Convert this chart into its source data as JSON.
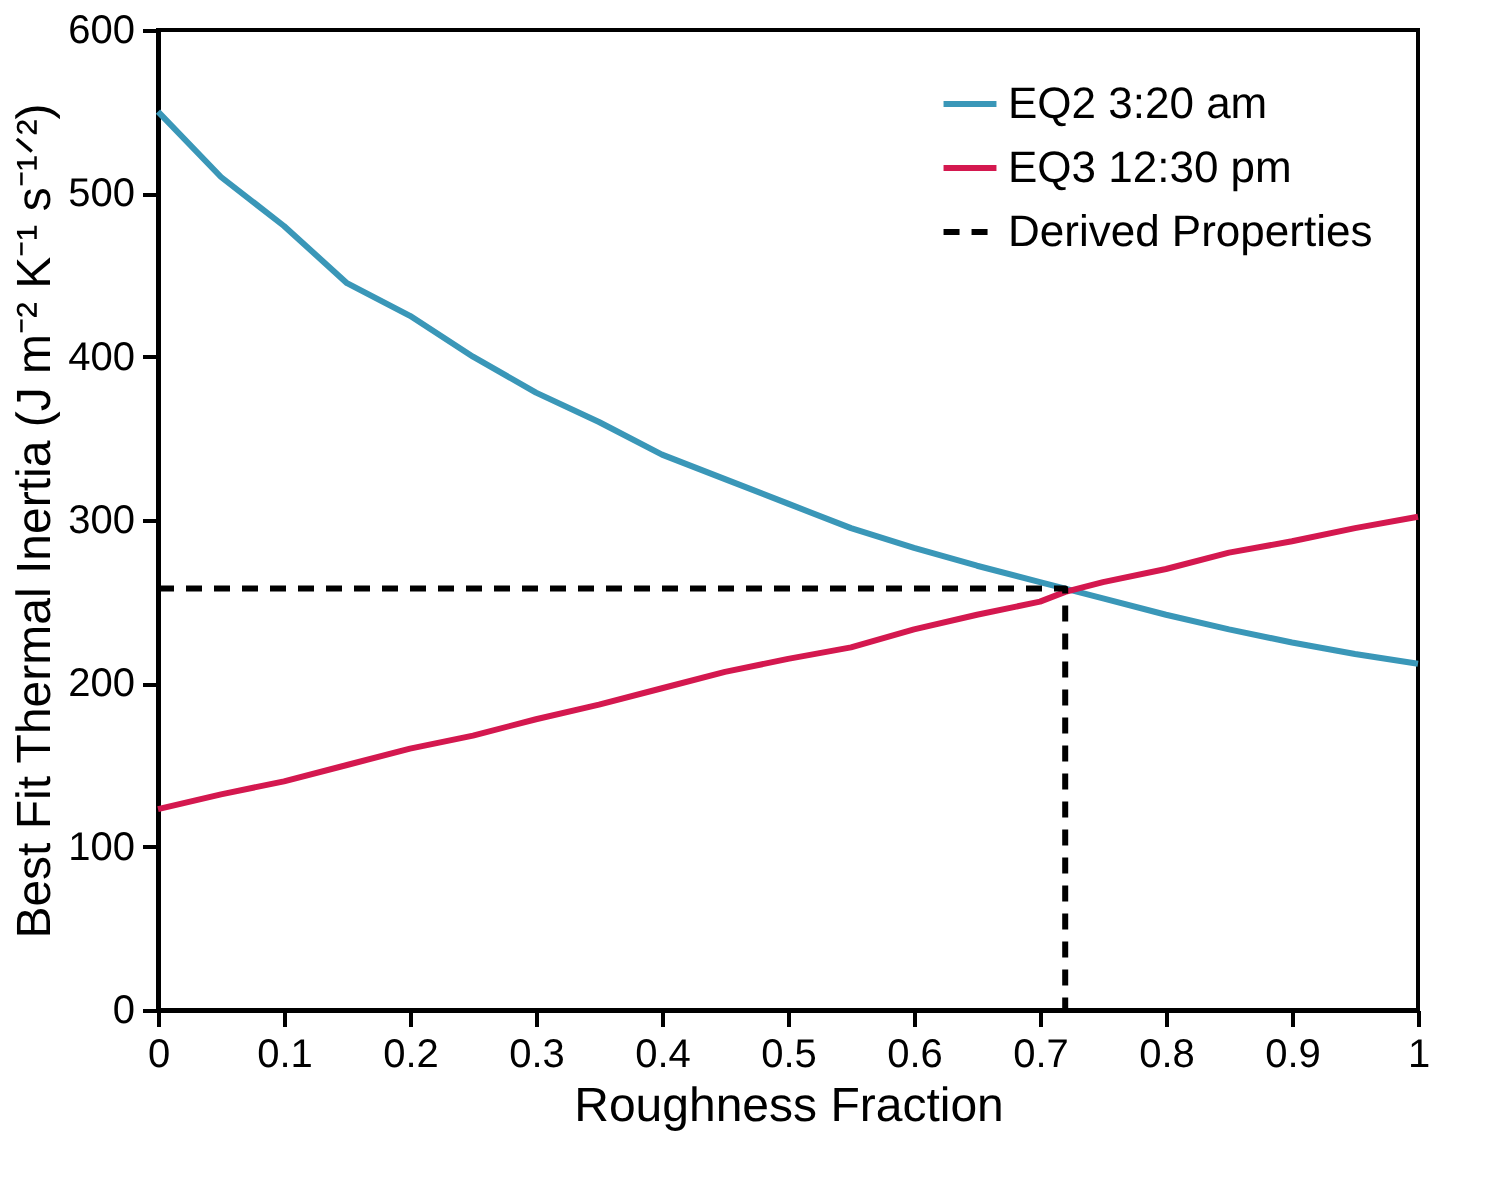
{
  "chart_data": {
    "type": "line",
    "xlabel": "Roughness Fraction",
    "ylabel": "Best Fit Thermal Inertia (J m⁻² K⁻¹ s⁻¹ᐟ²)",
    "xlim": [
      0,
      1
    ],
    "xticks": [
      0,
      0.1,
      0.2,
      0.3,
      0.4,
      0.5,
      0.6,
      0.7,
      0.8,
      0.9,
      1
    ],
    "ylim": [
      0,
      600
    ],
    "yticks": [
      0,
      100,
      200,
      300,
      400,
      500,
      600
    ],
    "grid": false,
    "legend": "top right",
    "line_style": "solid",
    "series": [
      {
        "name": "EQ2 3:20 am",
        "color": "#3a97b8",
        "x": [
          0,
          0.05,
          0.1,
          0.15,
          0.2,
          0.25,
          0.3,
          0.35,
          0.4,
          0.45,
          0.5,
          0.55,
          0.6,
          0.65,
          0.7,
          0.72,
          0.75,
          0.8,
          0.85,
          0.9,
          0.95,
          1
        ],
        "values": [
          550,
          510,
          480,
          445,
          425,
          400,
          378,
          360,
          340,
          325,
          310,
          295,
          283,
          272,
          262,
          258,
          252,
          242,
          233,
          225,
          218,
          212
        ]
      },
      {
        "name": "EQ3 12:30 pm",
        "color": "#d4184f",
        "x": [
          0,
          0.05,
          0.1,
          0.15,
          0.2,
          0.25,
          0.3,
          0.35,
          0.4,
          0.45,
          0.5,
          0.55,
          0.6,
          0.65,
          0.7,
          0.72,
          0.75,
          0.8,
          0.85,
          0.9,
          0.95,
          1
        ],
        "values": [
          123,
          132,
          140,
          150,
          160,
          168,
          178,
          187,
          197,
          207,
          215,
          222,
          233,
          242,
          250,
          256,
          262,
          270,
          280,
          287,
          295,
          302
        ]
      },
      {
        "name": "Derived Properties",
        "color": "#000000",
        "line_style": "dashed",
        "x": [
          0,
          0.72,
          0.72
        ],
        "values": [
          258,
          258,
          0
        ]
      }
    ]
  }
}
